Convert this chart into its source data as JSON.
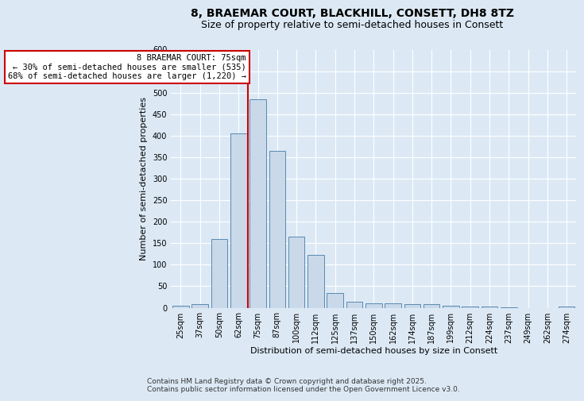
{
  "title_line1": "8, BRAEMAR COURT, BLACKHILL, CONSETT, DH8 8TZ",
  "title_line2": "Size of property relative to semi-detached houses in Consett",
  "xlabel": "Distribution of semi-detached houses by size in Consett",
  "ylabel": "Number of semi-detached properties",
  "categories": [
    "25sqm",
    "37sqm",
    "50sqm",
    "62sqm",
    "75sqm",
    "87sqm",
    "100sqm",
    "112sqm",
    "125sqm",
    "137sqm",
    "150sqm",
    "162sqm",
    "174sqm",
    "187sqm",
    "199sqm",
    "212sqm",
    "224sqm",
    "237sqm",
    "249sqm",
    "262sqm",
    "274sqm"
  ],
  "values": [
    5,
    8,
    160,
    405,
    485,
    365,
    165,
    122,
    35,
    13,
    11,
    10,
    8,
    8,
    4,
    3,
    2,
    1,
    0,
    0,
    3
  ],
  "bar_color": "#c9d9ea",
  "bar_edge_color": "#5a8ab0",
  "red_line_index": 4,
  "red_line_label": "8 BRAEMAR COURT: 75sqm",
  "annotation_line1": "← 30% of semi-detached houses are smaller (535)",
  "annotation_line2": "68% of semi-detached houses are larger (1,220) →",
  "annotation_box_color": "#ffffff",
  "annotation_box_edge": "#cc0000",
  "ylim": [
    0,
    600
  ],
  "yticks": [
    0,
    50,
    100,
    150,
    200,
    250,
    300,
    350,
    400,
    450,
    500,
    550,
    600
  ],
  "background_color": "#dce9f5",
  "plot_bg_color": "#dce9f5",
  "footer_line1": "Contains HM Land Registry data © Crown copyright and database right 2025.",
  "footer_line2": "Contains public sector information licensed under the Open Government Licence v3.0.",
  "title_fontsize": 10,
  "subtitle_fontsize": 9,
  "axis_label_fontsize": 8,
  "tick_fontsize": 7,
  "footer_fontsize": 6.5,
  "annotation_fontsize": 7.5
}
